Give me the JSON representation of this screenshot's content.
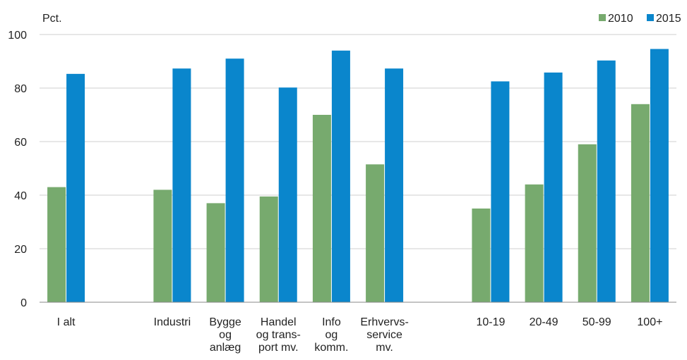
{
  "chart_data": {
    "type": "bar",
    "unit_label": "Pct.",
    "categories": [
      [
        "I alt"
      ],
      [],
      [
        "Industri"
      ],
      [
        "Bygge",
        "og",
        "anlæg"
      ],
      [
        "Handel",
        "og trans-",
        "port mv."
      ],
      [
        "Info",
        "og",
        "komm."
      ],
      [
        "Erhvervs-",
        "service",
        "mv."
      ],
      [],
      [
        "10-19"
      ],
      [
        "20-49"
      ],
      [
        "50-99"
      ],
      [
        "100+"
      ]
    ],
    "series": [
      {
        "name": "2010",
        "color": "#77aa6e",
        "values": [
          43,
          null,
          42,
          37,
          39.5,
          70,
          51.5,
          null,
          35,
          44,
          59,
          74
        ]
      },
      {
        "name": "2015",
        "color": "#0a86cc",
        "values": [
          85.3,
          null,
          87.3,
          91,
          80.2,
          94,
          87.3,
          null,
          82.5,
          85.8,
          90.3,
          94.6
        ]
      }
    ],
    "yticks": [
      0,
      20,
      40,
      60,
      80,
      100
    ],
    "ylim": [
      0,
      100
    ],
    "grid": true,
    "legend_position": "top-right"
  }
}
